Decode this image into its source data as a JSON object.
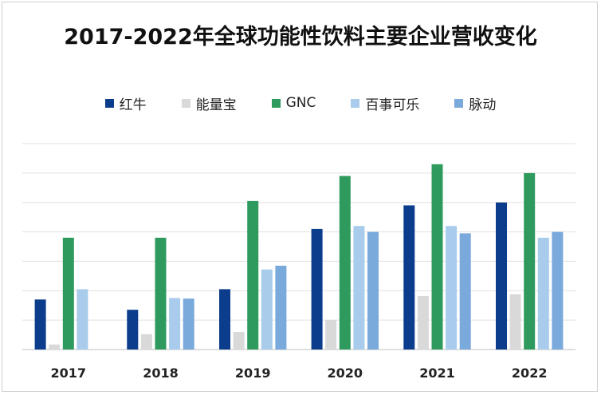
{
  "chart_data": {
    "type": "bar",
    "title": "2017-2022年全球功能性饮料主要企业营收变化",
    "categories": [
      "2017",
      "2018",
      "2019",
      "2020",
      "2021",
      "2022"
    ],
    "series": [
      {
        "name": "红牛",
        "color": "#0b3d8c",
        "values": [
          1.7,
          1.35,
          2.05,
          4.1,
          4.9,
          5.0
        ]
      },
      {
        "name": "能量宝",
        "color": "#d9d9d9",
        "values": [
          0.17,
          0.52,
          0.6,
          1.0,
          1.82,
          1.88
        ]
      },
      {
        "name": "GNC",
        "color": "#2e9a5e",
        "values": [
          3.8,
          3.8,
          5.05,
          5.9,
          6.3,
          6.0
        ]
      },
      {
        "name": "百事可乐",
        "color": "#a9ccec",
        "values": [
          2.05,
          1.75,
          2.72,
          4.2,
          4.2,
          3.8
        ]
      },
      {
        "name": "脉动",
        "color": "#7aa9dc",
        "values": [
          0,
          1.73,
          2.85,
          4.0,
          3.95,
          4.0
        ]
      }
    ],
    "ylim": [
      0,
      7
    ],
    "grid": true,
    "legend_position": "top"
  }
}
